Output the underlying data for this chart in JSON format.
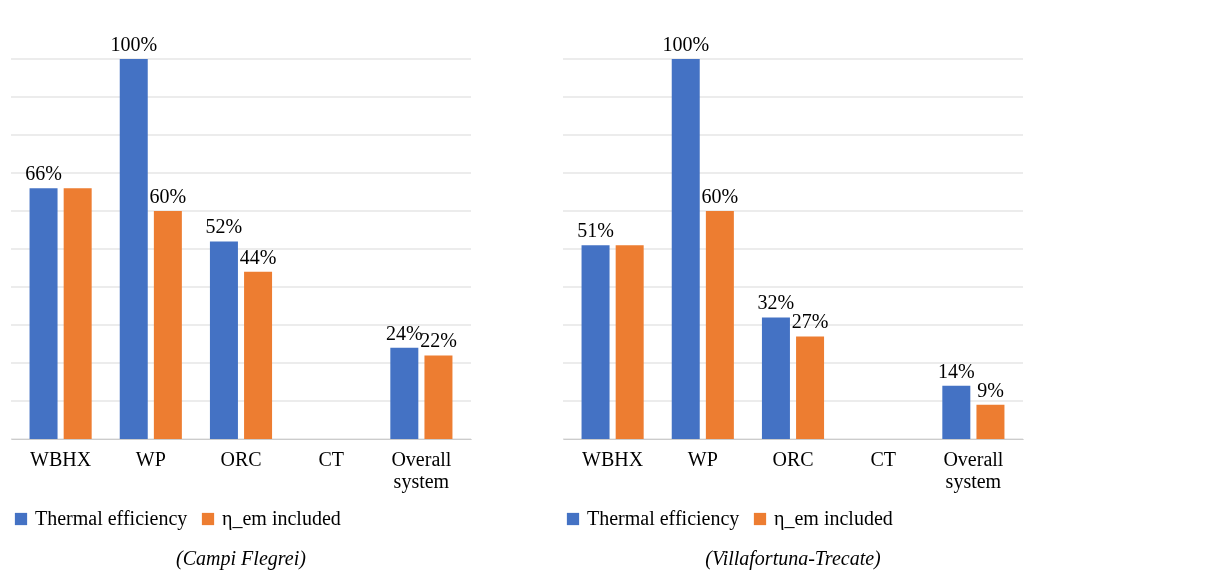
{
  "chart_data": [
    {
      "type": "bar",
      "title": "(Campi Flegrei)",
      "categories": [
        "WBHX",
        "WP",
        "ORC",
        "CT",
        "Overall system"
      ],
      "ylim": [
        0,
        100
      ],
      "yticks": [
        {
          "value": 0,
          "label": null
        },
        {
          "value": 10,
          "label": null
        },
        {
          "value": 20,
          "label": null
        },
        {
          "value": 30,
          "label": null
        },
        {
          "value": 40,
          "label": null
        },
        {
          "value": 50,
          "label": null
        },
        {
          "value": 60,
          "label": null
        },
        {
          "value": 70,
          "label": null
        },
        {
          "value": 80,
          "label": null
        },
        {
          "value": 90,
          "label": null
        },
        {
          "value": 100,
          "label": null
        }
      ],
      "grid": "y",
      "legend": "bottom",
      "tick_labels": "x",
      "series": [
        {
          "name": "Thermal efficiency",
          "color": "#4472c4",
          "values": [
            66,
            100,
            52,
            null,
            24
          ],
          "value_labels": [
            "66%",
            "100%",
            "52%",
            null,
            "24%"
          ]
        },
        {
          "name": "η_em included",
          "color": "#ed7d31",
          "values": [
            66,
            60,
            44,
            null,
            22
          ],
          "value_labels": [
            null,
            "60%",
            "44%",
            null,
            "22%"
          ]
        }
      ]
    },
    {
      "type": "bar",
      "title": "(Villafortuna-Trecate)",
      "categories": [
        "WBHX",
        "WP",
        "ORC",
        "CT",
        "Overall system"
      ],
      "ylim": [
        0,
        100
      ],
      "yticks": [
        {
          "value": 0,
          "label": null
        },
        {
          "value": 10,
          "label": null
        },
        {
          "value": 20,
          "label": null
        },
        {
          "value": 30,
          "label": null
        },
        {
          "value": 40,
          "label": null
        },
        {
          "value": 50,
          "label": null
        },
        {
          "value": 60,
          "label": null
        },
        {
          "value": 70,
          "label": null
        },
        {
          "value": 80,
          "label": null
        },
        {
          "value": 90,
          "label": null
        },
        {
          "value": 100,
          "label": null
        }
      ],
      "grid": "y",
      "legend": "bottom",
      "tick_labels": "x",
      "series": [
        {
          "name": "Thermal efficiency",
          "color": "#4472c4",
          "values": [
            51,
            100,
            32,
            null,
            14
          ],
          "value_labels": [
            "51%",
            "100%",
            "32%",
            null,
            "14%"
          ]
        },
        {
          "name": "η_em included",
          "color": "#ed7d31",
          "values": [
            51,
            60,
            27,
            null,
            9
          ],
          "value_labels": [
            null,
            "60%",
            "27%",
            null,
            "9%"
          ]
        }
      ]
    }
  ]
}
